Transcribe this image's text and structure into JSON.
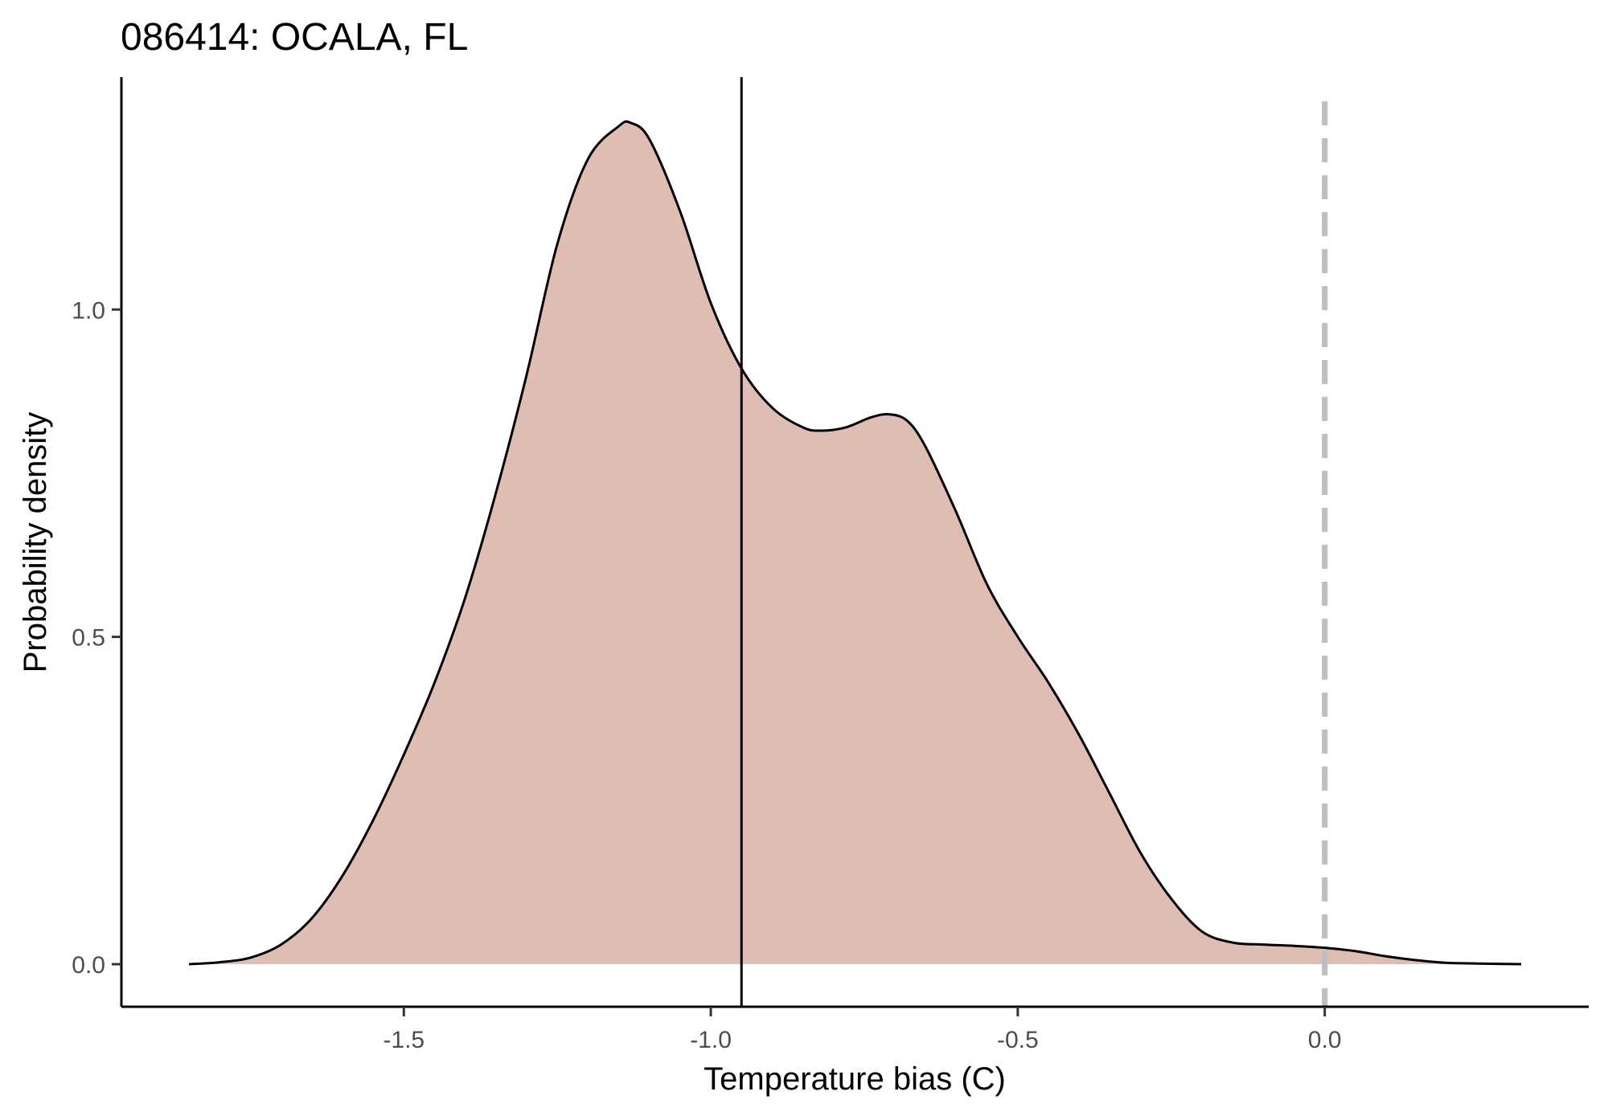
{
  "chart_data": {
    "type": "area",
    "title": "086414: OCALA, FL",
    "xlabel": "Temperature bias (C)",
    "ylabel": "Probability density",
    "xlim": [
      -1.96,
      0.43
    ],
    "ylim": [
      -0.065,
      1.355
    ],
    "x_ticks": [
      -1.5,
      -1.0,
      -0.5,
      0.0
    ],
    "x_tick_labels": [
      "-1.5",
      "-1.0",
      "-0.5",
      "0.0"
    ],
    "y_ticks": [
      0.0,
      0.5,
      1.0
    ],
    "y_tick_labels": [
      "0.0",
      "0.5",
      "1.0"
    ],
    "grid": false,
    "legend": "none",
    "fill_color": "#e0bdb2",
    "line_color": "#000000",
    "reference_lines": [
      {
        "x": -0.95,
        "style": "solid",
        "color": "#000000"
      },
      {
        "x": 0.0,
        "style": "dashed",
        "color": "#bebebe"
      }
    ],
    "series": [
      {
        "x": [
          -1.85,
          -1.8,
          -1.75,
          -1.7,
          -1.65,
          -1.6,
          -1.55,
          -1.5,
          -1.45,
          -1.4,
          -1.35,
          -1.3,
          -1.25,
          -1.2,
          -1.15,
          -1.13,
          -1.1,
          -1.05,
          -1.0,
          -0.95,
          -0.9,
          -0.85,
          -0.82,
          -0.78,
          -0.74,
          -0.71,
          -0.68,
          -0.65,
          -0.6,
          -0.55,
          -0.5,
          -0.45,
          -0.4,
          -0.35,
          -0.3,
          -0.25,
          -0.2,
          -0.15,
          -0.1,
          -0.05,
          0.0,
          0.05,
          0.1,
          0.15,
          0.2,
          0.25,
          0.32
        ],
        "y": [
          0.0,
          0.003,
          0.01,
          0.03,
          0.07,
          0.135,
          0.22,
          0.32,
          0.43,
          0.56,
          0.72,
          0.9,
          1.1,
          1.23,
          1.28,
          1.285,
          1.26,
          1.15,
          1.01,
          0.91,
          0.85,
          0.82,
          0.815,
          0.82,
          0.835,
          0.84,
          0.83,
          0.79,
          0.69,
          0.58,
          0.5,
          0.43,
          0.35,
          0.26,
          0.17,
          0.1,
          0.05,
          0.033,
          0.03,
          0.028,
          0.025,
          0.02,
          0.012,
          0.006,
          0.002,
          0.001,
          0.0
        ]
      }
    ]
  }
}
